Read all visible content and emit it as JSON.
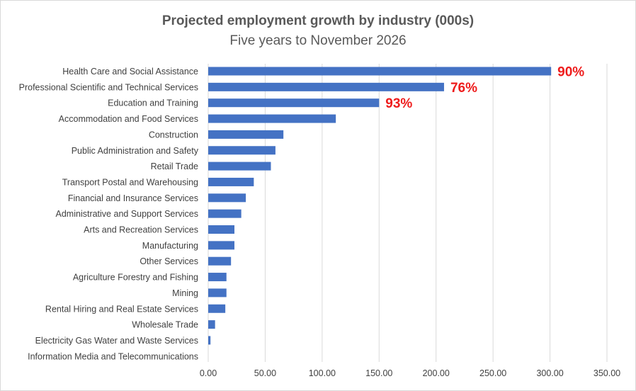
{
  "chart_data": {
    "type": "bar",
    "orientation": "horizontal",
    "title": "Projected employment growth by industry (000s)",
    "subtitle": "Five years to November 2026",
    "xlabel": "",
    "ylabel": "",
    "xlim": [
      0,
      350
    ],
    "grid": true,
    "bar_color": "#4472c4",
    "annotation_color": "#ee1c1c",
    "x_ticks": [
      0,
      50,
      100,
      150,
      200,
      250,
      300,
      350
    ],
    "x_tick_labels": [
      "0.00",
      "50.00",
      "100.00",
      "150.00",
      "200.00",
      "250.00",
      "300.00",
      "350.00"
    ],
    "categories": [
      "Health Care and Social Assistance",
      "Professional Scientific and Technical Services",
      "Education and Training",
      "Accommodation and Food Services",
      "Construction",
      "Public Administration and Safety",
      "Retail Trade",
      "Transport Postal and Warehousing",
      "Financial and Insurance Services",
      "Administrative and Support Services",
      "Arts and Recreation Services",
      "Manufacturing",
      "Other Services",
      "Agriculture Forestry and Fishing",
      "Mining",
      "Rental Hiring and Real Estate Services",
      "Wholesale Trade",
      "Electricity Gas Water and Waste Services",
      "Information Media and Telecommunications"
    ],
    "values": [
      301,
      207,
      150,
      112,
      66,
      59,
      55,
      40,
      33,
      29,
      23,
      23,
      20,
      16,
      16,
      15,
      6,
      2,
      0
    ],
    "annotations": [
      {
        "category": "Health Care and Social Assistance",
        "text": "90%"
      },
      {
        "category": "Professional Scientific and Technical Services",
        "text": "76%"
      },
      {
        "category": "Education and Training",
        "text": "93%"
      }
    ]
  }
}
